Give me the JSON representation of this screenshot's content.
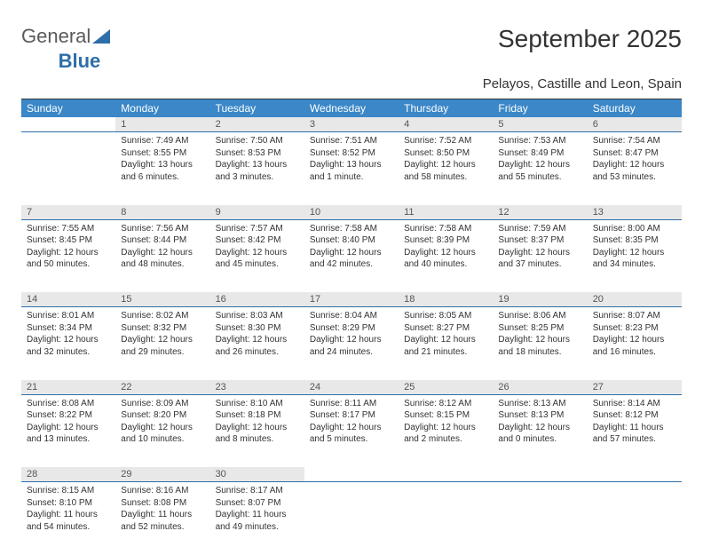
{
  "logo": {
    "text1": "General",
    "text2": "Blue"
  },
  "title": "September 2025",
  "subtitle": "Pelayos, Castille and Leon, Spain",
  "colors": {
    "header_bg": "#3b87c8",
    "header_fg": "#ffffff",
    "daynum_bg": "#e8e8e8",
    "daynum_border": "#2d6ea8",
    "text": "#333333",
    "logo_gray": "#5a5a5a",
    "logo_blue": "#2d6ea8",
    "page_bg": "#ffffff"
  },
  "day_names": [
    "Sunday",
    "Monday",
    "Tuesday",
    "Wednesday",
    "Thursday",
    "Friday",
    "Saturday"
  ],
  "weeks": [
    {
      "nums": [
        "",
        "1",
        "2",
        "3",
        "4",
        "5",
        "6"
      ],
      "cells": [
        null,
        {
          "sunrise": "Sunrise: 7:49 AM",
          "sunset": "Sunset: 8:55 PM",
          "daylight": "Daylight: 13 hours and 6 minutes."
        },
        {
          "sunrise": "Sunrise: 7:50 AM",
          "sunset": "Sunset: 8:53 PM",
          "daylight": "Daylight: 13 hours and 3 minutes."
        },
        {
          "sunrise": "Sunrise: 7:51 AM",
          "sunset": "Sunset: 8:52 PM",
          "daylight": "Daylight: 13 hours and 1 minute."
        },
        {
          "sunrise": "Sunrise: 7:52 AM",
          "sunset": "Sunset: 8:50 PM",
          "daylight": "Daylight: 12 hours and 58 minutes."
        },
        {
          "sunrise": "Sunrise: 7:53 AM",
          "sunset": "Sunset: 8:49 PM",
          "daylight": "Daylight: 12 hours and 55 minutes."
        },
        {
          "sunrise": "Sunrise: 7:54 AM",
          "sunset": "Sunset: 8:47 PM",
          "daylight": "Daylight: 12 hours and 53 minutes."
        }
      ]
    },
    {
      "nums": [
        "7",
        "8",
        "9",
        "10",
        "11",
        "12",
        "13"
      ],
      "cells": [
        {
          "sunrise": "Sunrise: 7:55 AM",
          "sunset": "Sunset: 8:45 PM",
          "daylight": "Daylight: 12 hours and 50 minutes."
        },
        {
          "sunrise": "Sunrise: 7:56 AM",
          "sunset": "Sunset: 8:44 PM",
          "daylight": "Daylight: 12 hours and 48 minutes."
        },
        {
          "sunrise": "Sunrise: 7:57 AM",
          "sunset": "Sunset: 8:42 PM",
          "daylight": "Daylight: 12 hours and 45 minutes."
        },
        {
          "sunrise": "Sunrise: 7:58 AM",
          "sunset": "Sunset: 8:40 PM",
          "daylight": "Daylight: 12 hours and 42 minutes."
        },
        {
          "sunrise": "Sunrise: 7:58 AM",
          "sunset": "Sunset: 8:39 PM",
          "daylight": "Daylight: 12 hours and 40 minutes."
        },
        {
          "sunrise": "Sunrise: 7:59 AM",
          "sunset": "Sunset: 8:37 PM",
          "daylight": "Daylight: 12 hours and 37 minutes."
        },
        {
          "sunrise": "Sunrise: 8:00 AM",
          "sunset": "Sunset: 8:35 PM",
          "daylight": "Daylight: 12 hours and 34 minutes."
        }
      ]
    },
    {
      "nums": [
        "14",
        "15",
        "16",
        "17",
        "18",
        "19",
        "20"
      ],
      "cells": [
        {
          "sunrise": "Sunrise: 8:01 AM",
          "sunset": "Sunset: 8:34 PM",
          "daylight": "Daylight: 12 hours and 32 minutes."
        },
        {
          "sunrise": "Sunrise: 8:02 AM",
          "sunset": "Sunset: 8:32 PM",
          "daylight": "Daylight: 12 hours and 29 minutes."
        },
        {
          "sunrise": "Sunrise: 8:03 AM",
          "sunset": "Sunset: 8:30 PM",
          "daylight": "Daylight: 12 hours and 26 minutes."
        },
        {
          "sunrise": "Sunrise: 8:04 AM",
          "sunset": "Sunset: 8:29 PM",
          "daylight": "Daylight: 12 hours and 24 minutes."
        },
        {
          "sunrise": "Sunrise: 8:05 AM",
          "sunset": "Sunset: 8:27 PM",
          "daylight": "Daylight: 12 hours and 21 minutes."
        },
        {
          "sunrise": "Sunrise: 8:06 AM",
          "sunset": "Sunset: 8:25 PM",
          "daylight": "Daylight: 12 hours and 18 minutes."
        },
        {
          "sunrise": "Sunrise: 8:07 AM",
          "sunset": "Sunset: 8:23 PM",
          "daylight": "Daylight: 12 hours and 16 minutes."
        }
      ]
    },
    {
      "nums": [
        "21",
        "22",
        "23",
        "24",
        "25",
        "26",
        "27"
      ],
      "cells": [
        {
          "sunrise": "Sunrise: 8:08 AM",
          "sunset": "Sunset: 8:22 PM",
          "daylight": "Daylight: 12 hours and 13 minutes."
        },
        {
          "sunrise": "Sunrise: 8:09 AM",
          "sunset": "Sunset: 8:20 PM",
          "daylight": "Daylight: 12 hours and 10 minutes."
        },
        {
          "sunrise": "Sunrise: 8:10 AM",
          "sunset": "Sunset: 8:18 PM",
          "daylight": "Daylight: 12 hours and 8 minutes."
        },
        {
          "sunrise": "Sunrise: 8:11 AM",
          "sunset": "Sunset: 8:17 PM",
          "daylight": "Daylight: 12 hours and 5 minutes."
        },
        {
          "sunrise": "Sunrise: 8:12 AM",
          "sunset": "Sunset: 8:15 PM",
          "daylight": "Daylight: 12 hours and 2 minutes."
        },
        {
          "sunrise": "Sunrise: 8:13 AM",
          "sunset": "Sunset: 8:13 PM",
          "daylight": "Daylight: 12 hours and 0 minutes."
        },
        {
          "sunrise": "Sunrise: 8:14 AM",
          "sunset": "Sunset: 8:12 PM",
          "daylight": "Daylight: 11 hours and 57 minutes."
        }
      ]
    },
    {
      "nums": [
        "28",
        "29",
        "30",
        "",
        "",
        "",
        ""
      ],
      "cells": [
        {
          "sunrise": "Sunrise: 8:15 AM",
          "sunset": "Sunset: 8:10 PM",
          "daylight": "Daylight: 11 hours and 54 minutes."
        },
        {
          "sunrise": "Sunrise: 8:16 AM",
          "sunset": "Sunset: 8:08 PM",
          "daylight": "Daylight: 11 hours and 52 minutes."
        },
        {
          "sunrise": "Sunrise: 8:17 AM",
          "sunset": "Sunset: 8:07 PM",
          "daylight": "Daylight: 11 hours and 49 minutes."
        },
        null,
        null,
        null,
        null
      ]
    }
  ]
}
